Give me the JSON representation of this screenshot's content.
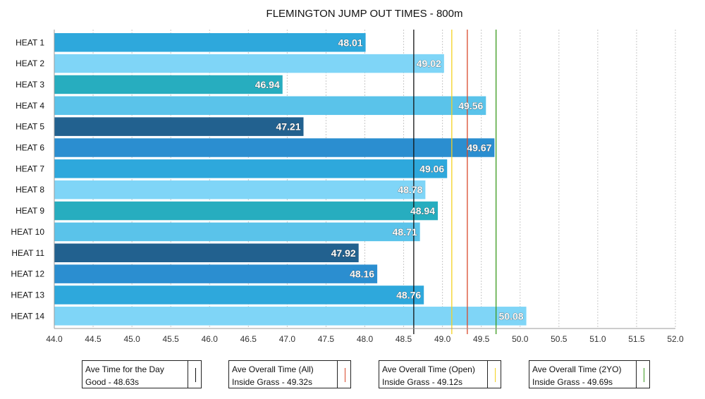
{
  "chart_data": {
    "type": "bar",
    "orientation": "horizontal",
    "title": "FLEMINGTON JUMP OUT TIMES - 800m",
    "categories": [
      "HEAT 1",
      "HEAT 2",
      "HEAT 3",
      "HEAT 4",
      "HEAT 5",
      "HEAT 6",
      "HEAT 7",
      "HEAT 8",
      "HEAT 9",
      "HEAT 10",
      "HEAT 11",
      "HEAT 12",
      "HEAT 13",
      "HEAT 14"
    ],
    "values": [
      48.01,
      49.02,
      46.94,
      49.56,
      47.21,
      49.67,
      49.06,
      48.78,
      48.94,
      48.71,
      47.92,
      48.16,
      48.76,
      50.08
    ],
    "value_labels": [
      "48.01",
      "49.02",
      "46.94",
      "49.56",
      "47.21",
      "49.67",
      "49.06",
      "48.78",
      "48.94",
      "48.71",
      "47.92",
      "48.16",
      "48.76",
      "50.08"
    ],
    "bar_colors": [
      "#2ea8dc",
      "#7fd5f7",
      "#27adbf",
      "#5ac3ea",
      "#22618f",
      "#2b8ed0",
      "#2ea8dc",
      "#7fd5f7",
      "#27adbf",
      "#5ac3ea",
      "#22618f",
      "#2b8ed0",
      "#2ea8dc",
      "#7fd5f7"
    ],
    "xlim": [
      44.0,
      52.0
    ],
    "xticks": [
      "44.0",
      "44.5",
      "45.0",
      "45.5",
      "46.0",
      "46.5",
      "47.0",
      "47.5",
      "48.0",
      "48.5",
      "49.0",
      "49.5",
      "50.0",
      "50.5",
      "51.0",
      "51.5",
      "52.0"
    ],
    "grid": "vertical dotted",
    "reference_lines": [
      {
        "value": 48.63,
        "color": "#111111",
        "line1": "Ave Time for the Day",
        "line2": "Good - 48.63s"
      },
      {
        "value": 49.32,
        "color": "#d9482b",
        "line1": "Ave Overall Time (All)",
        "line2": "Inside Grass - 49.32s"
      },
      {
        "value": 49.12,
        "color": "#f4d21f",
        "line1": "Ave Overall Time (Open)",
        "line2": "Inside Grass - 49.12s"
      },
      {
        "value": 49.69,
        "color": "#3a9a1e",
        "line1": "Ave Overall Time (2YO)",
        "line2": "Inside Grass - 49.69s"
      }
    ],
    "legend_position": "bottom"
  }
}
